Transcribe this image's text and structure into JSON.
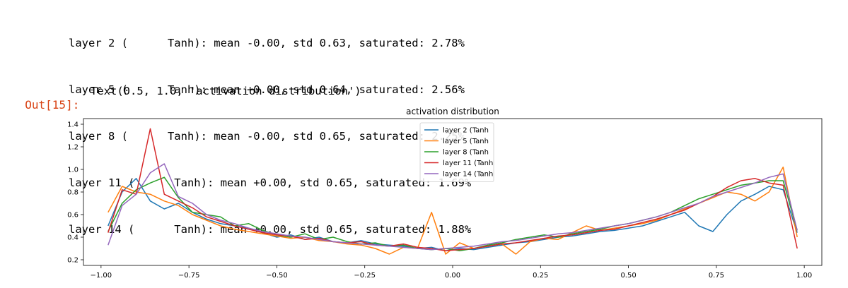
{
  "output": {
    "lines": [
      "layer 2 (      Tanh): mean -0.00, std 0.63, saturated: 2.78%",
      "layer 5 (      Tanh): mean +0.00, std 0.64, saturated: 2.56%",
      "layer 8 (      Tanh): mean -0.00, std 0.65, saturated: 2.25%",
      "layer 11 (      Tanh): mean +0.00, std 0.65, saturated: 1.69%",
      "layer 14 (      Tanh): mean +0.00, std 0.65, saturated: 1.88%"
    ],
    "prompt": "Out[15]:",
    "result": "Text(0.5, 1.0, 'activation distribution')"
  },
  "chart_data": {
    "type": "line",
    "title": "activation distribution",
    "xlabel": "",
    "ylabel": "",
    "xlim": [
      -1.05,
      1.05
    ],
    "ylim": [
      0.15,
      1.45
    ],
    "xticks": [
      -1.0,
      -0.75,
      -0.5,
      -0.25,
      0.0,
      0.25,
      0.5,
      0.75,
      1.0
    ],
    "xtick_labels": [
      "−1.00",
      "−0.75",
      "−0.50",
      "−0.25",
      "0.00",
      "0.25",
      "0.50",
      "0.75",
      "1.00"
    ],
    "yticks": [
      0.2,
      0.4,
      0.6,
      0.8,
      1.0,
      1.2,
      1.4
    ],
    "ytick_labels": [
      "0.2",
      "0.4",
      "0.6",
      "0.8",
      "1.0",
      "1.2",
      "1.4"
    ],
    "grid": false,
    "legend_position": "top-center",
    "x": [
      -0.98,
      -0.94,
      -0.9,
      -0.86,
      -0.82,
      -0.78,
      -0.74,
      -0.7,
      -0.66,
      -0.62,
      -0.58,
      -0.54,
      -0.5,
      -0.46,
      -0.42,
      -0.38,
      -0.34,
      -0.3,
      -0.26,
      -0.22,
      -0.18,
      -0.14,
      -0.1,
      -0.06,
      -0.02,
      0.02,
      0.06,
      0.1,
      0.14,
      0.18,
      0.22,
      0.26,
      0.3,
      0.34,
      0.38,
      0.42,
      0.46,
      0.5,
      0.54,
      0.58,
      0.62,
      0.66,
      0.7,
      0.74,
      0.78,
      0.82,
      0.86,
      0.9,
      0.94,
      0.98
    ],
    "series": [
      {
        "name": "layer 2 (Tanh",
        "color": "#1f77b4",
        "values": [
          0.5,
          0.8,
          0.92,
          0.72,
          0.65,
          0.7,
          0.62,
          0.56,
          0.52,
          0.5,
          0.48,
          0.44,
          0.4,
          0.42,
          0.38,
          0.4,
          0.36,
          0.35,
          0.37,
          0.34,
          0.33,
          0.32,
          0.3,
          0.31,
          0.28,
          0.3,
          0.29,
          0.31,
          0.33,
          0.35,
          0.36,
          0.38,
          0.4,
          0.41,
          0.43,
          0.45,
          0.46,
          0.48,
          0.5,
          0.54,
          0.58,
          0.62,
          0.5,
          0.45,
          0.6,
          0.72,
          0.78,
          0.85,
          0.82,
          0.44
        ]
      },
      {
        "name": "layer 5 (Tanh",
        "color": "#ff7f0e",
        "values": [
          0.62,
          0.85,
          0.8,
          0.78,
          0.72,
          0.68,
          0.6,
          0.55,
          0.5,
          0.47,
          0.45,
          0.43,
          0.41,
          0.39,
          0.4,
          0.37,
          0.36,
          0.34,
          0.33,
          0.3,
          0.25,
          0.31,
          0.3,
          0.62,
          0.25,
          0.35,
          0.3,
          0.32,
          0.34,
          0.25,
          0.36,
          0.39,
          0.38,
          0.44,
          0.5,
          0.46,
          0.48,
          0.5,
          0.52,
          0.55,
          0.6,
          0.65,
          0.7,
          0.75,
          0.8,
          0.78,
          0.72,
          0.8,
          1.02,
          0.4
        ]
      },
      {
        "name": "layer 8 (Tanh",
        "color": "#2ca02c",
        "values": [
          0.45,
          0.7,
          0.82,
          0.88,
          0.93,
          0.75,
          0.62,
          0.6,
          0.58,
          0.5,
          0.52,
          0.46,
          0.42,
          0.4,
          0.43,
          0.38,
          0.4,
          0.36,
          0.34,
          0.35,
          0.32,
          0.33,
          0.3,
          0.29,
          0.3,
          0.28,
          0.3,
          0.33,
          0.35,
          0.38,
          0.4,
          0.42,
          0.4,
          0.43,
          0.45,
          0.47,
          0.5,
          0.52,
          0.55,
          0.58,
          0.62,
          0.68,
          0.74,
          0.78,
          0.82,
          0.86,
          0.88,
          0.9,
          0.9,
          0.46
        ]
      },
      {
        "name": "layer 11 (Tanh",
        "color": "#d62728",
        "values": [
          0.44,
          0.82,
          0.78,
          1.36,
          0.78,
          0.72,
          0.66,
          0.58,
          0.54,
          0.5,
          0.47,
          0.44,
          0.42,
          0.41,
          0.38,
          0.39,
          0.36,
          0.35,
          0.36,
          0.33,
          0.32,
          0.34,
          0.31,
          0.3,
          0.28,
          0.29,
          0.3,
          0.32,
          0.34,
          0.35,
          0.37,
          0.39,
          0.41,
          0.42,
          0.44,
          0.46,
          0.47,
          0.5,
          0.53,
          0.56,
          0.6,
          0.64,
          0.7,
          0.76,
          0.84,
          0.9,
          0.92,
          0.88,
          0.86,
          0.3
        ]
      },
      {
        "name": "layer 14 (Tanh",
        "color": "#9467bd",
        "values": [
          0.33,
          0.68,
          0.78,
          0.97,
          1.05,
          0.76,
          0.7,
          0.6,
          0.55,
          0.52,
          0.48,
          0.45,
          0.43,
          0.41,
          0.4,
          0.38,
          0.36,
          0.35,
          0.34,
          0.33,
          0.32,
          0.31,
          0.3,
          0.29,
          0.3,
          0.31,
          0.32,
          0.34,
          0.36,
          0.37,
          0.39,
          0.41,
          0.43,
          0.44,
          0.46,
          0.48,
          0.5,
          0.52,
          0.55,
          0.58,
          0.62,
          0.66,
          0.7,
          0.76,
          0.8,
          0.84,
          0.88,
          0.93,
          0.96,
          0.46
        ]
      }
    ]
  }
}
